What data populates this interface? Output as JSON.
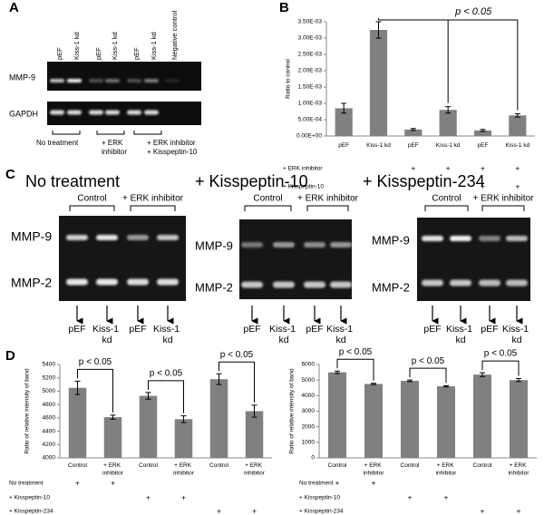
{
  "panel_labels": [
    "A",
    "B",
    "C",
    "D"
  ],
  "panel_a": {
    "lanes": [
      "pEF",
      "Kiss-1 kd",
      "pEF",
      "Kiss-1 kd",
      "pEF",
      "Kiss-1 kd",
      "Negative control"
    ],
    "rows": [
      "MMP-9",
      "GAPDH"
    ],
    "groups": [
      "No treatment",
      "+ ERK inhibitor",
      "+ ERK inhibitor + Kisspeptin-10"
    ]
  },
  "panel_c": {
    "gels": [
      {
        "title": "No treatment",
        "groups": [
          "Control",
          "+ ERK inhibitor"
        ],
        "rows": [
          "MMP-9",
          "MMP-2"
        ],
        "lanes": [
          "pEF",
          "Kiss-1 kd",
          "pEF",
          "Kiss-1 kd"
        ]
      },
      {
        "title": "+ Kisspeptin-10",
        "groups": [
          "Control",
          "+ ERK inhibitor"
        ],
        "rows": [
          "MMP-9",
          "MMP-2"
        ],
        "lanes": [
          "pEF",
          "Kiss-1 kd",
          "pEF",
          "Kiss-1 kd"
        ]
      },
      {
        "title": "+ Kisspeptin-234",
        "groups": [
          "Control",
          "+ ERK inhibitor"
        ],
        "rows": [
          "MMP-9",
          "MMP-2"
        ],
        "lanes": [
          "pEF",
          "Kiss-1 kd",
          "pEF",
          "Kiss-1 kd"
        ]
      }
    ]
  },
  "chart_data": [
    {
      "type": "bar",
      "ylabel": "Ratio to control",
      "color": "#808080",
      "categories": [
        "pEF",
        "Kiss-1 kd",
        "pEF",
        "Kiss-1 kd",
        "pEF",
        "Kiss-1 kd"
      ],
      "values": [
        0.00085,
        0.00325,
        0.0002,
        0.0008,
        0.00017,
        0.00063
      ],
      "errors": [
        0.00015,
        0.00025,
        3e-05,
        0.0001,
        3e-05,
        5e-05
      ],
      "ylim": [
        0,
        0.0035
      ],
      "yticks": [
        {
          "value": 0,
          "label": "0.00E+00"
        },
        {
          "value": 0.0005,
          "label": "5.00E-04"
        },
        {
          "value": 0.001,
          "label": "1.00E-03"
        },
        {
          "value": 0.0015,
          "label": "1.50E-03"
        },
        {
          "value": 0.002,
          "label": "2.00E-03"
        },
        {
          "value": 0.0025,
          "label": "2.50E-03"
        },
        {
          "value": 0.003,
          "label": "3.00E-03"
        },
        {
          "value": 0.0035,
          "label": "3.50E-03"
        }
      ],
      "annotations": [
        "p < 0.05"
      ],
      "treatments": [
        {
          "label": "+ ERK inhibitor",
          "marks": [
            null,
            null,
            "+",
            "+",
            "+",
            "+"
          ]
        },
        {
          "label": "+ Kisspeptin-10",
          "marks": [
            null,
            null,
            null,
            null,
            "+",
            "+"
          ]
        }
      ]
    },
    {
      "type": "bar",
      "ylabel": "Ratio of relative intensity of band",
      "color": "#808080",
      "categories": [
        "Control",
        "+ ERK inhibitor",
        "Control",
        "+ ERK inhibitor",
        "Control",
        "+ ERK inhibitor"
      ],
      "values": [
        5050,
        4610,
        4930,
        4580,
        5180,
        4700
      ],
      "errors": [
        100,
        30,
        50,
        50,
        80,
        90
      ],
      "ylim": [
        4000,
        5400
      ],
      "yticks": [
        4000,
        4200,
        4400,
        4600,
        4800,
        5000,
        5200,
        5400
      ],
      "annotations": [
        "p < 0.05",
        "p < 0.05",
        "p < 0.05"
      ],
      "treatments": [
        {
          "label": "No treatment",
          "marks": [
            "+",
            "+",
            null,
            null,
            null,
            null
          ]
        },
        {
          "label": "+ Kisspeptin-10",
          "marks": [
            null,
            null,
            "+",
            "+",
            null,
            null
          ]
        },
        {
          "label": "+ Kisspeptin-234",
          "marks": [
            null,
            null,
            null,
            null,
            "+",
            "+"
          ]
        }
      ]
    },
    {
      "type": "bar",
      "ylabel": "Ratio of relative intensity of band",
      "color": "#808080",
      "categories": [
        "Control",
        "+ ERK inhibitor",
        "Control",
        "+ ERK inhibitor",
        "Control",
        "+ ERK inhibitor"
      ],
      "values": [
        5500,
        4750,
        4950,
        4600,
        5350,
        5000
      ],
      "errors": [
        80,
        40,
        50,
        40,
        120,
        100
      ],
      "ylim": [
        0,
        6000
      ],
      "yticks": [
        0,
        1000,
        2000,
        3000,
        4000,
        5000,
        6000
      ],
      "annotations": [
        "p < 0.05",
        "p < 0.05",
        "p < 0.05"
      ],
      "treatments": [
        {
          "label": "No treatment",
          "marks": [
            "+",
            "+",
            null,
            null,
            null,
            null
          ]
        },
        {
          "label": "+ Kisspeptin-10",
          "marks": [
            null,
            null,
            "+",
            "+",
            null,
            null
          ]
        },
        {
          "label": "+ Kisspeptin-234",
          "marks": [
            null,
            null,
            null,
            null,
            "+",
            "+"
          ]
        }
      ]
    }
  ]
}
